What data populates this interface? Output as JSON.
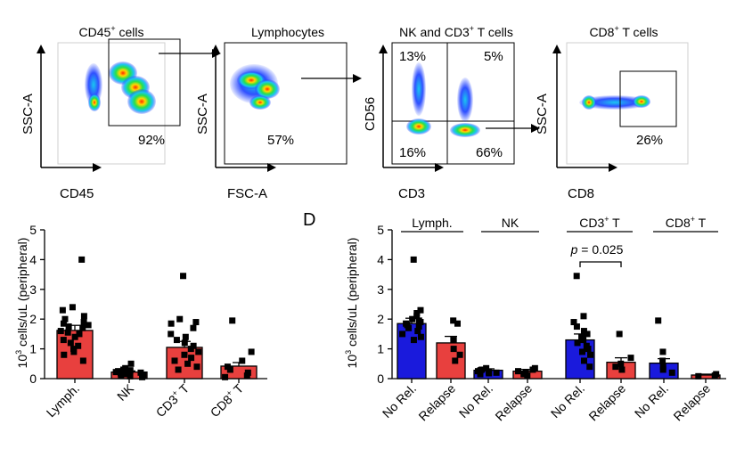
{
  "panels": {
    "panel_d_letter": "D"
  },
  "flow_gates": [
    {
      "title": "CD45",
      "title_sup": "+",
      "title_rest": " cells",
      "xlabel": "CD45",
      "ylabel": "SSC-A",
      "gate_labels": [
        "92%"
      ]
    },
    {
      "title": "Lymphocytes",
      "title_sup": "",
      "title_rest": "",
      "xlabel": "FSC-A",
      "ylabel": "SSC-A",
      "gate_labels": [
        "57%"
      ]
    },
    {
      "title": "NK and CD3",
      "title_sup": "+",
      "title_rest": " T cells",
      "xlabel": "CD3",
      "ylabel": "CD56",
      "gate_labels": [
        "13%",
        "5%",
        "16%",
        "66%"
      ]
    },
    {
      "title": "CD8",
      "title_sup": "+",
      "title_rest": " T cells",
      "xlabel": "CD8",
      "ylabel": "SSC-A",
      "gate_labels": [
        "26%"
      ]
    }
  ],
  "chart_data": [
    {
      "type": "bar",
      "ylabel_pre": "10",
      "ylabel_sup": "3",
      "ylabel_post": " cells/uL (peripheral)",
      "ylim": [
        0,
        5
      ],
      "yticks": [
        "0",
        "1",
        "2",
        "3",
        "4",
        "5"
      ],
      "categories": [
        {
          "label": "Lymph.",
          "sup": "",
          "rest": ""
        },
        {
          "label": "NK",
          "sup": "",
          "rest": ""
        },
        {
          "label": "CD3",
          "sup": "+",
          "rest": " T"
        },
        {
          "label": "CD8",
          "sup": "+",
          "rest": " T"
        }
      ],
      "values": [
        1.62,
        0.22,
        1.05,
        0.42
      ],
      "errors": [
        0.17,
        0.04,
        0.2,
        0.12
      ],
      "bar_color": "#e8403e",
      "points": [
        [
          4.0,
          2.3,
          2.4,
          2.1,
          2.0,
          1.9,
          1.85,
          1.8,
          1.75,
          1.7,
          1.6,
          1.55,
          1.5,
          1.4,
          1.3,
          1.2,
          1.1,
          1.0,
          0.9,
          0.8,
          0.6
        ],
        [
          0.5,
          0.35,
          0.3,
          0.28,
          0.25,
          0.22,
          0.2,
          0.18,
          0.15,
          0.12,
          0.1,
          0.08,
          0.05
        ],
        [
          3.45,
          2.0,
          1.9,
          1.85,
          1.7,
          1.5,
          1.4,
          1.3,
          1.2,
          1.1,
          1.0,
          0.9,
          0.8,
          0.7,
          0.6,
          0.5,
          0.4,
          0.3
        ],
        [
          1.95,
          0.9,
          0.6,
          0.4,
          0.3,
          0.2,
          0.1,
          0.05
        ]
      ]
    },
    {
      "type": "bar",
      "ylabel_pre": "10",
      "ylabel_sup": "3",
      "ylabel_post": " cells/uL (peripheral)",
      "ylim": [
        0,
        5
      ],
      "yticks": [
        "0",
        "1",
        "2",
        "3",
        "4",
        "5"
      ],
      "groups": [
        {
          "label": "Lymph.",
          "sup": "",
          "rest": ""
        },
        {
          "label": "NK",
          "sup": "",
          "rest": ""
        },
        {
          "label": "CD3",
          "sup": "+",
          "rest": " T"
        },
        {
          "label": "CD8",
          "sup": "+",
          "rest": " T"
        }
      ],
      "categories": [
        "No Rel.",
        "Relapse",
        "No Rel.",
        "Relapse",
        "No Rel.",
        "Relapse",
        "No Rel.",
        "Relapse"
      ],
      "values": [
        1.85,
        1.2,
        0.28,
        0.25,
        1.3,
        0.55,
        0.52,
        0.12
      ],
      "errors": [
        0.18,
        0.22,
        0.05,
        0.06,
        0.2,
        0.15,
        0.15,
        0.03
      ],
      "colors": [
        "#1a1adc",
        "#e8403e",
        "#1a1adc",
        "#e8403e",
        "#1a1adc",
        "#e8403e",
        "#1a1adc",
        "#e8403e"
      ],
      "annotation": {
        "text_italic": "p",
        "text_rest": " = 0.025",
        "between": [
          4,
          5
        ]
      },
      "points": [
        [
          4.0,
          2.3,
          2.2,
          2.1,
          2.0,
          1.95,
          1.9,
          1.85,
          1.8,
          1.75,
          1.7,
          1.6,
          1.5,
          1.4,
          1.3
        ],
        [
          1.95,
          1.85,
          1.3,
          1.0,
          0.8,
          0.6
        ],
        [
          0.35,
          0.3,
          0.28,
          0.25,
          0.22,
          0.2,
          0.18,
          0.15
        ],
        [
          0.35,
          0.3,
          0.25,
          0.2,
          0.15,
          0.1
        ],
        [
          3.45,
          2.1,
          1.9,
          1.75,
          1.6,
          1.5,
          1.4,
          1.3,
          1.2,
          1.1,
          1.0,
          0.9,
          0.8,
          0.6,
          0.4
        ],
        [
          1.5,
          0.7,
          0.5,
          0.4,
          0.3
        ],
        [
          1.95,
          0.9,
          0.6,
          0.4,
          0.3,
          0.2
        ],
        [
          0.15,
          0.1,
          0.08
        ]
      ]
    }
  ]
}
